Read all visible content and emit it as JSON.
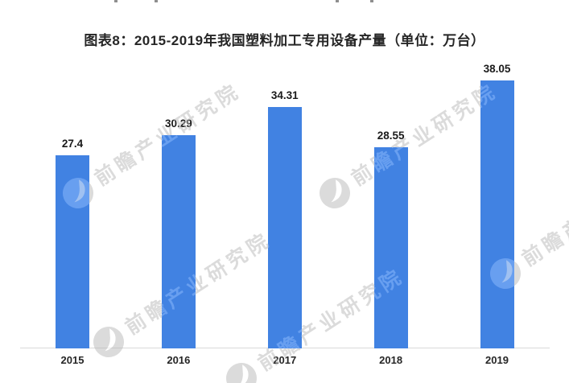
{
  "page": {
    "background_color": "#ffffff"
  },
  "title": {
    "text": "图表8：2015-2019年我国塑料加工专用设备产量（单位：万台）"
  },
  "chart_data": {
    "type": "bar",
    "title": "图表8：2015-2019年我国塑料加工专用设备产量（单位：万台）",
    "unit": "万台",
    "categories": [
      "2015",
      "2016",
      "2017",
      "2018",
      "2019"
    ],
    "values": [
      27.4,
      30.29,
      34.31,
      28.55,
      38.05
    ],
    "value_labels": [
      "27.4",
      "30.29",
      "34.31",
      "28.55",
      "38.05"
    ],
    "xlabel": "",
    "ylabel": "",
    "ylim": [
      0,
      40
    ],
    "grid": false,
    "legend_position": "none",
    "y_axis_visible": false,
    "x_axis_line_color": "#d9d9d9",
    "bar_color": "#4182e2",
    "label_color": "#1a1a1a"
  },
  "watermark": {
    "text": "前瞻产业研究院",
    "logo_icon": "qianzhan-swoosh-logo",
    "color": "#b9b6b2"
  }
}
